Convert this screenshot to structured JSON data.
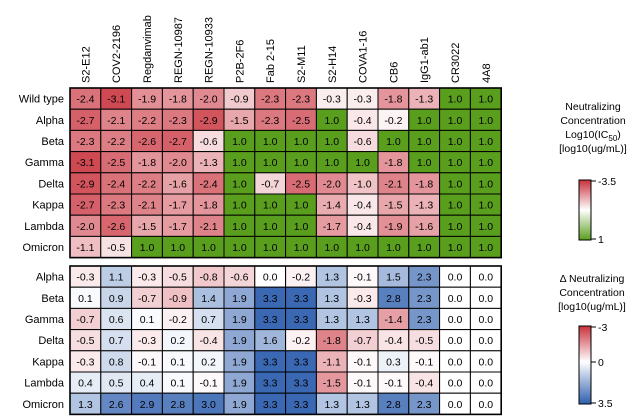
{
  "antibodies": [
    "S2-E12",
    "COV2-2196",
    "Regdanvimab",
    "REGN-10987",
    "REGN-10933",
    "P2B-2F6",
    "Fab 2-15",
    "S2-M11",
    "S2-H14",
    "COVA1-16",
    "CB6",
    "IgG1-ab1",
    "CR3022",
    "4A8"
  ],
  "colors": {
    "low": "#c9313c",
    "mid": "#ffffff",
    "high": "#5a9e1e",
    "blue": "#2e5fae",
    "border": "#000000"
  },
  "chart_data": [
    {
      "type": "heatmap",
      "rows": [
        "Wild type",
        "Alpha",
        "Beta",
        "Gamma",
        "Delta",
        "Kappa",
        "Lambda",
        "Omicron"
      ],
      "values": [
        [
          -2.4,
          -3.1,
          -1.9,
          -1.8,
          -2.0,
          -0.9,
          -2.3,
          -2.3,
          -0.3,
          -0.3,
          -1.8,
          -1.3,
          1.0,
          1.0
        ],
        [
          -2.7,
          -2.1,
          -2.2,
          -2.3,
          -2.9,
          -1.5,
          -2.3,
          -2.5,
          1.0,
          -0.4,
          -0.2,
          1.0,
          1.0,
          1.0
        ],
        [
          -2.3,
          -2.2,
          -2.6,
          -2.7,
          -0.6,
          1.0,
          1.0,
          1.0,
          1.0,
          -0.6,
          1.0,
          1.0,
          1.0,
          1.0
        ],
        [
          -3.1,
          -2.5,
          -1.8,
          -2.0,
          -1.3,
          1.0,
          1.0,
          1.0,
          1.0,
          1.0,
          -1.8,
          1.0,
          1.0,
          1.0
        ],
        [
          -2.9,
          -2.4,
          -2.2,
          -1.6,
          -2.4,
          1.0,
          -0.7,
          -2.5,
          -2.0,
          -1.0,
          -2.1,
          -1.8,
          1.0,
          1.0
        ],
        [
          -2.7,
          -2.3,
          -2.1,
          -1.7,
          -1.8,
          1.0,
          1.0,
          1.0,
          -1.4,
          -0.4,
          -1.5,
          -1.3,
          1.0,
          1.0
        ],
        [
          -2.0,
          -2.6,
          -1.5,
          -1.7,
          -2.1,
          1.0,
          1.0,
          1.0,
          -1.7,
          -0.4,
          -1.9,
          -1.6,
          1.0,
          1.0
        ],
        [
          -1.1,
          -0.5,
          1.0,
          1.0,
          1.0,
          1.0,
          1.0,
          1.0,
          1.0,
          1.0,
          1.0,
          1.0,
          1.0,
          1.0
        ]
      ],
      "color_range": [
        -3.5,
        1
      ],
      "legend_title": [
        "Neutralizing",
        "Concentration",
        "Log10(IC50)",
        "[log10(ug/mL)]"
      ],
      "legend_ticks": [
        "-3.5",
        "1"
      ]
    },
    {
      "type": "heatmap",
      "rows": [
        "Alpha",
        "Beta",
        "Gamma",
        "Delta",
        "Kappa",
        "Lambda",
        "Omicron"
      ],
      "values": [
        [
          -0.3,
          1.1,
          -0.3,
          -0.5,
          -0.8,
          -0.6,
          0.0,
          -0.2,
          1.3,
          -0.1,
          1.5,
          2.3,
          0.0,
          0.0
        ],
        [
          0.1,
          0.9,
          -0.7,
          -0.9,
          1.4,
          1.9,
          3.3,
          3.3,
          1.3,
          -0.3,
          2.8,
          2.3,
          0.0,
          0.0
        ],
        [
          -0.7,
          0.6,
          0.1,
          -0.2,
          0.7,
          1.9,
          3.3,
          3.3,
          1.3,
          1.3,
          -1.4,
          2.3,
          0.0,
          0.0
        ],
        [
          -0.5,
          0.7,
          -0.3,
          0.2,
          -0.4,
          1.9,
          1.6,
          -0.2,
          -1.8,
          -0.7,
          -0.4,
          -0.5,
          0.0,
          0.0
        ],
        [
          -0.3,
          0.8,
          -0.1,
          0.1,
          0.2,
          1.9,
          3.3,
          3.3,
          -1.1,
          -0.1,
          0.3,
          -0.1,
          0.0,
          0.0
        ],
        [
          0.4,
          0.5,
          0.4,
          0.1,
          -0.1,
          1.9,
          3.3,
          3.3,
          -1.5,
          -0.1,
          -0.1,
          -0.4,
          0.0,
          0.0
        ],
        [
          1.3,
          2.6,
          2.9,
          2.8,
          3.0,
          1.9,
          3.3,
          3.3,
          1.3,
          1.3,
          2.8,
          2.3,
          0.0,
          0.0
        ]
      ],
      "color_range": [
        -3,
        3.5
      ],
      "legend_title": [
        "Δ Neutralizing",
        "Concentration",
        "[log10(ug/mL)]"
      ],
      "legend_ticks": [
        "-3",
        "0",
        "3.5"
      ]
    }
  ]
}
